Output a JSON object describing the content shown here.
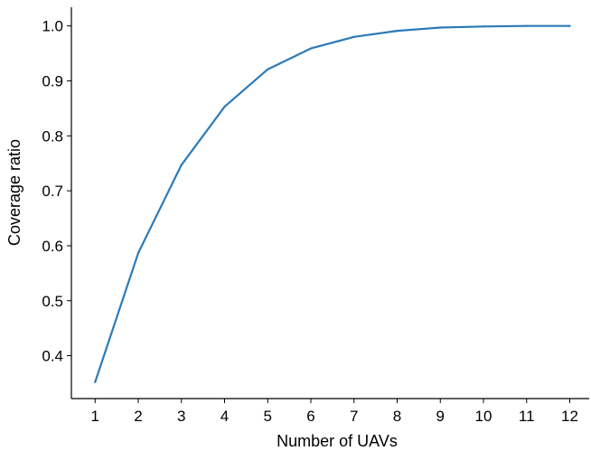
{
  "chart_data": {
    "type": "line",
    "title": "",
    "xlabel": "Number of UAVs",
    "ylabel": "Coverage ratio",
    "x": [
      1,
      2,
      3,
      4,
      5,
      6,
      7,
      8,
      9,
      10,
      11,
      12
    ],
    "series": [
      {
        "values": [
          0.352,
          0.587,
          0.747,
          0.853,
          0.921,
          0.959,
          0.98,
          0.991,
          0.997,
          0.999,
          1.0,
          1.0
        ],
        "color": "#2b7bb9"
      }
    ],
    "xticks": [
      "1",
      "2",
      "3",
      "4",
      "5",
      "6",
      "7",
      "8",
      "9",
      "10",
      "11",
      "12"
    ],
    "yticks": [
      "0.4",
      "0.5",
      "0.6",
      "0.7",
      "0.8",
      "0.9",
      "1.0"
    ],
    "ytick_values": [
      0.4,
      0.5,
      0.6,
      0.7,
      0.8,
      0.9,
      1.0
    ],
    "xlim": [
      0.45,
      12.45
    ],
    "ylim": [
      0.322,
      1.034
    ],
    "grid": false,
    "legend": "none"
  }
}
